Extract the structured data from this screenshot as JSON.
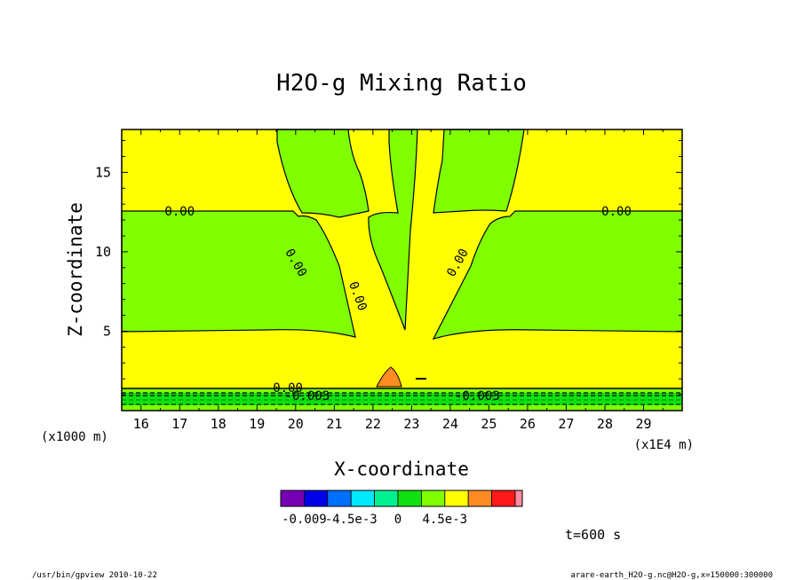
{
  "chart_data": {
    "type": "contour",
    "title": "H2O-g Mixing Ratio",
    "xlabel": "X-coordinate",
    "ylabel": "Z-coordinate",
    "x_unit": "(x1E4 m)",
    "y_unit": "(x1000 m)",
    "xlim": [
      15.5,
      30
    ],
    "ylim": [
      0,
      17.7
    ],
    "x_ticks": [
      16,
      17,
      18,
      19,
      20,
      21,
      22,
      23,
      24,
      25,
      26,
      27,
      28,
      29
    ],
    "y_ticks": [
      5,
      10,
      15
    ],
    "contour_labels": [
      {
        "text": "0.00",
        "x": 17.0,
        "z": 12.5,
        "rotate": 0
      },
      {
        "text": "0.00",
        "x": 28.3,
        "z": 12.5,
        "rotate": 0
      },
      {
        "text": "0.00",
        "x": 20.0,
        "z": 9.3,
        "rotate": 60
      },
      {
        "text": "0.00",
        "x": 24.2,
        "z": 9.3,
        "rotate": -60
      },
      {
        "text": "0.00",
        "x": 21.6,
        "z": 7.2,
        "rotate": 70
      },
      {
        "text": "0.00",
        "x": 19.8,
        "z": 1.4,
        "rotate": 0
      },
      {
        "text": "-0.003",
        "x": 20.3,
        "z": 0.9,
        "rotate": 0
      },
      {
        "text": "-0.003",
        "x": 24.7,
        "z": 0.9,
        "rotate": 0
      }
    ],
    "colorbar": {
      "colors": [
        "#7800b4",
        "#0000e8",
        "#0070ff",
        "#00e8ff",
        "#00f090",
        "#10e010",
        "#80ff00",
        "#ffff00",
        "#ff8c20",
        "#ff1a1a",
        "#ff8ca0"
      ],
      "tick_labels": [
        "-0.009",
        "-4.5e-3",
        "0",
        "4.5e-3"
      ]
    },
    "time_label": "t=600 s",
    "footer_left": "/usr/bin/gpview   2010-10-22",
    "footer_right": "arare-earth_H2O-g.nc@H2O-g,x=150000:300000"
  },
  "colors": {
    "positive": "#ffff00",
    "negative": "#80ff00",
    "deep_negative": "#10e010",
    "orange": "#ff8c20"
  }
}
